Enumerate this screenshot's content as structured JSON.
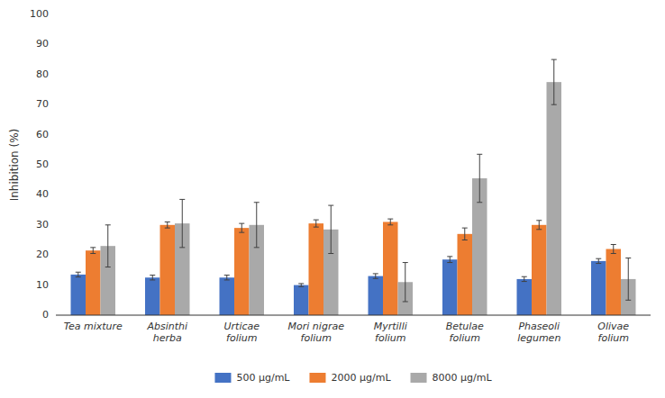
{
  "chart_data": {
    "type": "bar",
    "categories": [
      "Tea mixture",
      "Absinthi\nherba",
      "Urticae\nfolium",
      "Mori nigrae\nfolium",
      "Myrtilli\nfolium",
      "Betulae\nfolium",
      "Phaseoli\nlegumen",
      "Olivae\nfolium"
    ],
    "series": [
      {
        "name": "500 μg/mL",
        "color": "#4472C4",
        "values": [
          13.5,
          12.5,
          12.5,
          10.0,
          13.0,
          18.5,
          12.0,
          18.0
        ],
        "errors": [
          0.8,
          0.8,
          0.8,
          0.5,
          0.8,
          1.0,
          0.8,
          0.8
        ]
      },
      {
        "name": "2000 μg/mL",
        "color": "#ED7D31",
        "values": [
          21.5,
          30.0,
          29.0,
          30.5,
          31.0,
          27.0,
          30.0,
          22.0
        ],
        "errors": [
          1.0,
          1.0,
          1.5,
          1.2,
          1.0,
          2.0,
          1.5,
          1.5
        ]
      },
      {
        "name": "8000 μg/mL",
        "color": "#A9A9A9",
        "values": [
          23.0,
          30.5,
          30.0,
          28.5,
          11.0,
          45.5,
          77.5,
          12.0
        ],
        "errors": [
          7.0,
          8.0,
          7.5,
          8.0,
          6.5,
          8.0,
          7.5,
          7.0
        ]
      }
    ],
    "ylabel": "Inhibition (%)",
    "ylim": [
      0,
      100
    ],
    "yticks": [
      0,
      10,
      20,
      30,
      40,
      50,
      60,
      70,
      80,
      90,
      100
    ],
    "grid": false,
    "legend": "bottom"
  }
}
